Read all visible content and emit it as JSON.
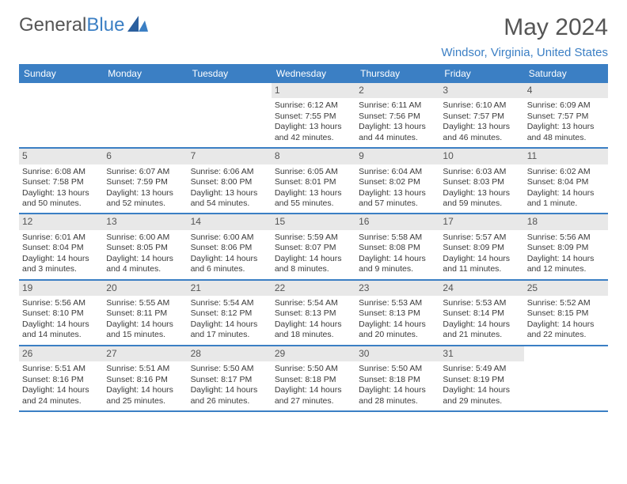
{
  "logo": {
    "part1": "General",
    "part2": "Blue"
  },
  "title": "May 2024",
  "location": "Windsor, Virginia, United States",
  "colors": {
    "header_bg": "#3b7fc4",
    "header_text": "#ffffff",
    "daynum_bg": "#e8e8e8",
    "text": "#3a3a3a",
    "title_color": "#555555",
    "week_border": "#3b7fc4"
  },
  "days_of_week": [
    "Sunday",
    "Monday",
    "Tuesday",
    "Wednesday",
    "Thursday",
    "Friday",
    "Saturday"
  ],
  "weeks": [
    [
      {
        "empty": true
      },
      {
        "empty": true
      },
      {
        "empty": true
      },
      {
        "day": "1",
        "sunrise": "Sunrise: 6:12 AM",
        "sunset": "Sunset: 7:55 PM",
        "daylight1": "Daylight: 13 hours",
        "daylight2": "and 42 minutes."
      },
      {
        "day": "2",
        "sunrise": "Sunrise: 6:11 AM",
        "sunset": "Sunset: 7:56 PM",
        "daylight1": "Daylight: 13 hours",
        "daylight2": "and 44 minutes."
      },
      {
        "day": "3",
        "sunrise": "Sunrise: 6:10 AM",
        "sunset": "Sunset: 7:57 PM",
        "daylight1": "Daylight: 13 hours",
        "daylight2": "and 46 minutes."
      },
      {
        "day": "4",
        "sunrise": "Sunrise: 6:09 AM",
        "sunset": "Sunset: 7:57 PM",
        "daylight1": "Daylight: 13 hours",
        "daylight2": "and 48 minutes."
      }
    ],
    [
      {
        "day": "5",
        "sunrise": "Sunrise: 6:08 AM",
        "sunset": "Sunset: 7:58 PM",
        "daylight1": "Daylight: 13 hours",
        "daylight2": "and 50 minutes."
      },
      {
        "day": "6",
        "sunrise": "Sunrise: 6:07 AM",
        "sunset": "Sunset: 7:59 PM",
        "daylight1": "Daylight: 13 hours",
        "daylight2": "and 52 minutes."
      },
      {
        "day": "7",
        "sunrise": "Sunrise: 6:06 AM",
        "sunset": "Sunset: 8:00 PM",
        "daylight1": "Daylight: 13 hours",
        "daylight2": "and 54 minutes."
      },
      {
        "day": "8",
        "sunrise": "Sunrise: 6:05 AM",
        "sunset": "Sunset: 8:01 PM",
        "daylight1": "Daylight: 13 hours",
        "daylight2": "and 55 minutes."
      },
      {
        "day": "9",
        "sunrise": "Sunrise: 6:04 AM",
        "sunset": "Sunset: 8:02 PM",
        "daylight1": "Daylight: 13 hours",
        "daylight2": "and 57 minutes."
      },
      {
        "day": "10",
        "sunrise": "Sunrise: 6:03 AM",
        "sunset": "Sunset: 8:03 PM",
        "daylight1": "Daylight: 13 hours",
        "daylight2": "and 59 minutes."
      },
      {
        "day": "11",
        "sunrise": "Sunrise: 6:02 AM",
        "sunset": "Sunset: 8:04 PM",
        "daylight1": "Daylight: 14 hours",
        "daylight2": "and 1 minute."
      }
    ],
    [
      {
        "day": "12",
        "sunrise": "Sunrise: 6:01 AM",
        "sunset": "Sunset: 8:04 PM",
        "daylight1": "Daylight: 14 hours",
        "daylight2": "and 3 minutes."
      },
      {
        "day": "13",
        "sunrise": "Sunrise: 6:00 AM",
        "sunset": "Sunset: 8:05 PM",
        "daylight1": "Daylight: 14 hours",
        "daylight2": "and 4 minutes."
      },
      {
        "day": "14",
        "sunrise": "Sunrise: 6:00 AM",
        "sunset": "Sunset: 8:06 PM",
        "daylight1": "Daylight: 14 hours",
        "daylight2": "and 6 minutes."
      },
      {
        "day": "15",
        "sunrise": "Sunrise: 5:59 AM",
        "sunset": "Sunset: 8:07 PM",
        "daylight1": "Daylight: 14 hours",
        "daylight2": "and 8 minutes."
      },
      {
        "day": "16",
        "sunrise": "Sunrise: 5:58 AM",
        "sunset": "Sunset: 8:08 PM",
        "daylight1": "Daylight: 14 hours",
        "daylight2": "and 9 minutes."
      },
      {
        "day": "17",
        "sunrise": "Sunrise: 5:57 AM",
        "sunset": "Sunset: 8:09 PM",
        "daylight1": "Daylight: 14 hours",
        "daylight2": "and 11 minutes."
      },
      {
        "day": "18",
        "sunrise": "Sunrise: 5:56 AM",
        "sunset": "Sunset: 8:09 PM",
        "daylight1": "Daylight: 14 hours",
        "daylight2": "and 12 minutes."
      }
    ],
    [
      {
        "day": "19",
        "sunrise": "Sunrise: 5:56 AM",
        "sunset": "Sunset: 8:10 PM",
        "daylight1": "Daylight: 14 hours",
        "daylight2": "and 14 minutes."
      },
      {
        "day": "20",
        "sunrise": "Sunrise: 5:55 AM",
        "sunset": "Sunset: 8:11 PM",
        "daylight1": "Daylight: 14 hours",
        "daylight2": "and 15 minutes."
      },
      {
        "day": "21",
        "sunrise": "Sunrise: 5:54 AM",
        "sunset": "Sunset: 8:12 PM",
        "daylight1": "Daylight: 14 hours",
        "daylight2": "and 17 minutes."
      },
      {
        "day": "22",
        "sunrise": "Sunrise: 5:54 AM",
        "sunset": "Sunset: 8:13 PM",
        "daylight1": "Daylight: 14 hours",
        "daylight2": "and 18 minutes."
      },
      {
        "day": "23",
        "sunrise": "Sunrise: 5:53 AM",
        "sunset": "Sunset: 8:13 PM",
        "daylight1": "Daylight: 14 hours",
        "daylight2": "and 20 minutes."
      },
      {
        "day": "24",
        "sunrise": "Sunrise: 5:53 AM",
        "sunset": "Sunset: 8:14 PM",
        "daylight1": "Daylight: 14 hours",
        "daylight2": "and 21 minutes."
      },
      {
        "day": "25",
        "sunrise": "Sunrise: 5:52 AM",
        "sunset": "Sunset: 8:15 PM",
        "daylight1": "Daylight: 14 hours",
        "daylight2": "and 22 minutes."
      }
    ],
    [
      {
        "day": "26",
        "sunrise": "Sunrise: 5:51 AM",
        "sunset": "Sunset: 8:16 PM",
        "daylight1": "Daylight: 14 hours",
        "daylight2": "and 24 minutes."
      },
      {
        "day": "27",
        "sunrise": "Sunrise: 5:51 AM",
        "sunset": "Sunset: 8:16 PM",
        "daylight1": "Daylight: 14 hours",
        "daylight2": "and 25 minutes."
      },
      {
        "day": "28",
        "sunrise": "Sunrise: 5:50 AM",
        "sunset": "Sunset: 8:17 PM",
        "daylight1": "Daylight: 14 hours",
        "daylight2": "and 26 minutes."
      },
      {
        "day": "29",
        "sunrise": "Sunrise: 5:50 AM",
        "sunset": "Sunset: 8:18 PM",
        "daylight1": "Daylight: 14 hours",
        "daylight2": "and 27 minutes."
      },
      {
        "day": "30",
        "sunrise": "Sunrise: 5:50 AM",
        "sunset": "Sunset: 8:18 PM",
        "daylight1": "Daylight: 14 hours",
        "daylight2": "and 28 minutes."
      },
      {
        "day": "31",
        "sunrise": "Sunrise: 5:49 AM",
        "sunset": "Sunset: 8:19 PM",
        "daylight1": "Daylight: 14 hours",
        "daylight2": "and 29 minutes."
      },
      {
        "empty": true
      }
    ]
  ]
}
